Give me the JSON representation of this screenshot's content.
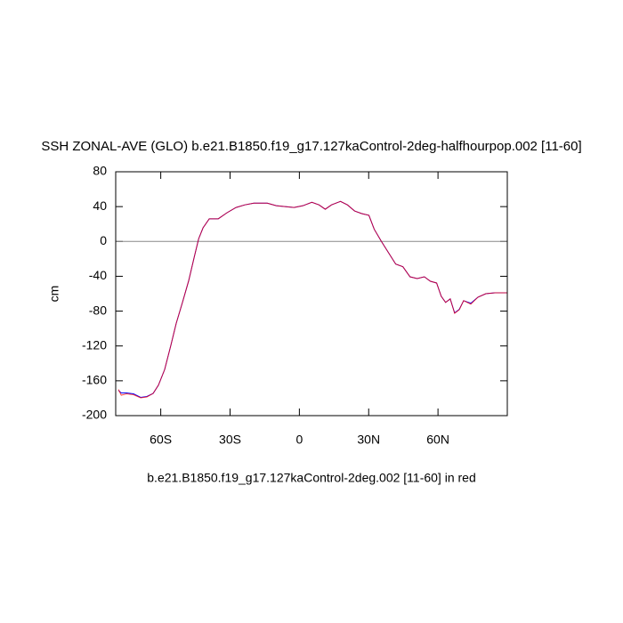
{
  "chart_data": {
    "type": "line",
    "title": "SSH ZONAL-AVE (GLO) b.e21.B1850.f19_g17.127kaControl-2deg-halfhourpop.002 [11-60]",
    "x_label": "b.e21.B1850.f19_g17.127kaControl-2deg.002 [11-60] in red",
    "y_label": "cm",
    "x": [
      -78.3,
      -77.1,
      -74.8,
      -71.8,
      -68.7,
      -66,
      -63.3,
      -61,
      -58.3,
      -55.6,
      -53.3,
      -50.6,
      -47.9,
      -45.6,
      -43.6,
      -41.7,
      -39,
      -35.1,
      -31.3,
      -27.4,
      -23.6,
      -19.7,
      -13.9,
      -10,
      -6.2,
      -2.3,
      1.5,
      5.4,
      8.5,
      11.2,
      13.9,
      17.8,
      20.8,
      23.9,
      27,
      30.1,
      32.4,
      35.5,
      38.6,
      41.7,
      44.8,
      47.9,
      51,
      54.1,
      56.7,
      59.4,
      61.4,
      63.3,
      65.3,
      67.2,
      69.2,
      71.1,
      74.2,
      77.3,
      80.7,
      84.6,
      90
    ],
    "series": [
      {
        "color": "#0000ff",
        "values": [
          -171,
          -174,
          -174,
          -175,
          -179,
          -178,
          -174.5,
          -165,
          -147,
          -119,
          -94,
          -70,
          -45,
          -19,
          3,
          15.6,
          26,
          26,
          33,
          39,
          42,
          44,
          44,
          41,
          40,
          39,
          41,
          45,
          42,
          37,
          42,
          46,
          42,
          35,
          32,
          30,
          14,
          0,
          -13,
          -26,
          -29,
          -40.6,
          -42.6,
          -40.6,
          -45.7,
          -47.7,
          -63,
          -70,
          -66,
          -82,
          -78,
          -68,
          -71,
          -64,
          -60,
          -59,
          -59
        ]
      },
      {
        "color": "#ff0000",
        "values": [
          -170,
          -176.5,
          -175,
          -176,
          -179.5,
          -178.5,
          -174.5,
          -165,
          -147,
          -119,
          -94,
          -70,
          -45,
          -19,
          3,
          15.6,
          26,
          26,
          33,
          39,
          42,
          44,
          44,
          41,
          40,
          39,
          41,
          45,
          42,
          37,
          42,
          46,
          42,
          35,
          32,
          30,
          14,
          0,
          -13,
          -26,
          -29,
          -40.6,
          -42.6,
          -40.6,
          -45.7,
          -47.7,
          -63,
          -70,
          -66,
          -82.5,
          -78.4,
          -68,
          -72,
          -64,
          -60,
          -59,
          -59
        ]
      }
    ],
    "hline": 0,
    "xlim": [
      -79.5,
      90
    ],
    "xticks": [
      {
        "value": -60,
        "label": "60S"
      },
      {
        "value": -30,
        "label": "30S"
      },
      0,
      {
        "value": 30,
        "label": "30N"
      },
      {
        "value": 60,
        "label": "60N"
      }
    ],
    "ylim": [
      -200,
      80
    ],
    "yticks": [
      -200,
      -160,
      -120,
      -80,
      -40,
      0,
      40,
      80
    ]
  }
}
